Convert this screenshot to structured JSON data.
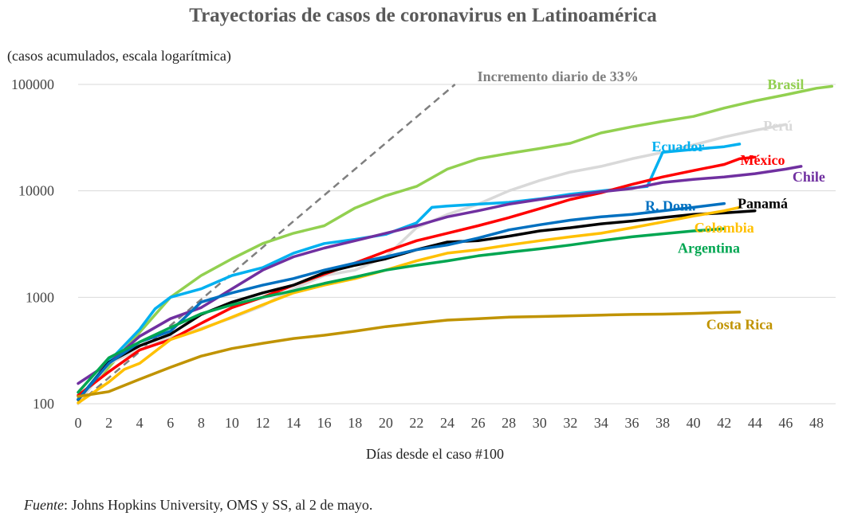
{
  "chart_data": {
    "type": "line",
    "title": "Trayectorias de casos de coronavirus en Latinoamérica",
    "ylabel": "(casos acumulados, escala logarítmica)",
    "xlabel": "Días desde el caso #100",
    "source_label": "Fuente",
    "source_text": ": Johns Hopkins University, OMS y SS, al 2 de mayo.",
    "y_scale": "log",
    "ylim": [
      100,
      100000
    ],
    "xlim": [
      0,
      49
    ],
    "x_ticks": [
      0,
      2,
      4,
      6,
      8,
      10,
      12,
      14,
      16,
      18,
      20,
      22,
      24,
      26,
      28,
      30,
      32,
      34,
      36,
      38,
      40,
      42,
      44,
      46,
      48
    ],
    "y_ticks": [
      100,
      1000,
      10000,
      100000
    ],
    "y_tick_labels": [
      "100",
      "1000",
      "10000",
      "100000"
    ],
    "grid": "horizontal",
    "reference_line": {
      "name": "Incremento diario de 33%",
      "style": "dashed",
      "color": "#7f7f7f",
      "start": [
        0,
        100
      ],
      "end": [
        24.5,
        100000
      ]
    },
    "series": [
      {
        "name": "Brasil",
        "color": "#92d050",
        "label_at": [
          46,
          100000
        ],
        "points": [
          [
            0,
            110
          ],
          [
            2,
            220
          ],
          [
            4,
            470
          ],
          [
            6,
            1000
          ],
          [
            8,
            1600
          ],
          [
            10,
            2300
          ],
          [
            12,
            3200
          ],
          [
            14,
            4000
          ],
          [
            16,
            4700
          ],
          [
            18,
            6900
          ],
          [
            20,
            9000
          ],
          [
            22,
            11000
          ],
          [
            24,
            16000
          ],
          [
            26,
            20000
          ],
          [
            28,
            22500
          ],
          [
            30,
            25000
          ],
          [
            32,
            28000
          ],
          [
            34,
            35000
          ],
          [
            36,
            40000
          ],
          [
            38,
            45000
          ],
          [
            40,
            50000
          ],
          [
            42,
            60000
          ],
          [
            44,
            70000
          ],
          [
            46,
            80000
          ],
          [
            48,
            92000
          ],
          [
            49,
            96000
          ]
        ]
      },
      {
        "name": "Perú",
        "color": "#d9d9d9",
        "label_at": [
          45.5,
          41000
        ],
        "points": [
          [
            0,
            100
          ],
          [
            2,
            240
          ],
          [
            4,
            320
          ],
          [
            6,
            420
          ],
          [
            8,
            510
          ],
          [
            10,
            640
          ],
          [
            12,
            830
          ],
          [
            14,
            1200
          ],
          [
            16,
            1600
          ],
          [
            18,
            1800
          ],
          [
            20,
            2400
          ],
          [
            22,
            4500
          ],
          [
            24,
            6000
          ],
          [
            26,
            7500
          ],
          [
            28,
            10000
          ],
          [
            30,
            12500
          ],
          [
            32,
            15000
          ],
          [
            34,
            17000
          ],
          [
            36,
            20000
          ],
          [
            38,
            23000
          ],
          [
            40,
            27000
          ],
          [
            42,
            32000
          ],
          [
            44,
            37000
          ],
          [
            46,
            42000
          ]
        ]
      },
      {
        "name": "Ecuador",
        "color": "#00b0f0",
        "label_at": [
          39,
          26000
        ],
        "points": [
          [
            0,
            110
          ],
          [
            2,
            250
          ],
          [
            4,
            500
          ],
          [
            5,
            780
          ],
          [
            6,
            1000
          ],
          [
            8,
            1200
          ],
          [
            10,
            1600
          ],
          [
            12,
            1900
          ],
          [
            14,
            2600
          ],
          [
            16,
            3200
          ],
          [
            18,
            3500
          ],
          [
            20,
            3900
          ],
          [
            22,
            5000
          ],
          [
            23,
            7000
          ],
          [
            24,
            7200
          ],
          [
            26,
            7500
          ],
          [
            28,
            7800
          ],
          [
            30,
            8400
          ],
          [
            32,
            9300
          ],
          [
            34,
            10000
          ],
          [
            37,
            11000
          ],
          [
            38,
            23000
          ],
          [
            40,
            24500
          ],
          [
            42,
            26000
          ],
          [
            43,
            27500
          ]
        ]
      },
      {
        "name": "México",
        "color": "#ff0000",
        "label_at": [
          44.5,
          19500
        ],
        "points": [
          [
            0,
            120
          ],
          [
            2,
            200
          ],
          [
            4,
            320
          ],
          [
            6,
            400
          ],
          [
            8,
            570
          ],
          [
            10,
            800
          ],
          [
            12,
            1000
          ],
          [
            14,
            1300
          ],
          [
            16,
            1650
          ],
          [
            18,
            2100
          ],
          [
            20,
            2700
          ],
          [
            22,
            3400
          ],
          [
            24,
            4000
          ],
          [
            26,
            4700
          ],
          [
            28,
            5600
          ],
          [
            30,
            6800
          ],
          [
            32,
            8300
          ],
          [
            34,
            9600
          ],
          [
            36,
            11500
          ],
          [
            38,
            13500
          ],
          [
            40,
            15500
          ],
          [
            42,
            17700
          ],
          [
            43,
            20000
          ],
          [
            44,
            20700
          ]
        ]
      },
      {
        "name": "Chile",
        "color": "#7030a0",
        "label_at": [
          47.5,
          13500
        ],
        "points": [
          [
            0,
            155
          ],
          [
            2,
            240
          ],
          [
            4,
            430
          ],
          [
            6,
            630
          ],
          [
            8,
            800
          ],
          [
            10,
            1200
          ],
          [
            12,
            1800
          ],
          [
            14,
            2400
          ],
          [
            16,
            2900
          ],
          [
            18,
            3400
          ],
          [
            20,
            4000
          ],
          [
            22,
            4700
          ],
          [
            24,
            5700
          ],
          [
            26,
            6500
          ],
          [
            28,
            7500
          ],
          [
            30,
            8300
          ],
          [
            32,
            9000
          ],
          [
            34,
            9800
          ],
          [
            36,
            10500
          ],
          [
            38,
            12000
          ],
          [
            40,
            12800
          ],
          [
            42,
            13500
          ],
          [
            44,
            14500
          ],
          [
            46,
            16000
          ],
          [
            47,
            17000
          ]
        ]
      },
      {
        "name": "Panamá",
        "color": "#000000",
        "label_at": [
          44.5,
          7600
        ],
        "points": [
          [
            0,
            109
          ],
          [
            2,
            245
          ],
          [
            4,
            350
          ],
          [
            6,
            450
          ],
          [
            8,
            690
          ],
          [
            10,
            900
          ],
          [
            12,
            1100
          ],
          [
            14,
            1300
          ],
          [
            16,
            1700
          ],
          [
            18,
            2000
          ],
          [
            20,
            2300
          ],
          [
            22,
            2800
          ],
          [
            24,
            3300
          ],
          [
            26,
            3400
          ],
          [
            28,
            3750
          ],
          [
            30,
            4200
          ],
          [
            32,
            4500
          ],
          [
            34,
            4900
          ],
          [
            36,
            5200
          ],
          [
            38,
            5600
          ],
          [
            40,
            6000
          ],
          [
            42,
            6200
          ],
          [
            44,
            6500
          ]
        ]
      },
      {
        "name": "R. Dom.",
        "color": "#0070c0",
        "label_at": [
          38.5,
          7200
        ],
        "points": [
          [
            0,
            110
          ],
          [
            2,
            240
          ],
          [
            4,
            380
          ],
          [
            6,
            480
          ],
          [
            8,
            900
          ],
          [
            10,
            1100
          ],
          [
            12,
            1300
          ],
          [
            14,
            1500
          ],
          [
            16,
            1800
          ],
          [
            18,
            2100
          ],
          [
            20,
            2400
          ],
          [
            22,
            2800
          ],
          [
            24,
            3100
          ],
          [
            26,
            3600
          ],
          [
            28,
            4300
          ],
          [
            30,
            4800
          ],
          [
            32,
            5300
          ],
          [
            34,
            5700
          ],
          [
            36,
            6000
          ],
          [
            38,
            6500
          ],
          [
            40,
            7000
          ],
          [
            42,
            7600
          ]
        ]
      },
      {
        "name": "Colombia",
        "color": "#ffc000",
        "label_at": [
          42,
          4500
        ],
        "points": [
          [
            0,
            102
          ],
          [
            2,
            160
          ],
          [
            3,
            210
          ],
          [
            4,
            240
          ],
          [
            6,
            400
          ],
          [
            8,
            500
          ],
          [
            10,
            650
          ],
          [
            12,
            850
          ],
          [
            14,
            1100
          ],
          [
            16,
            1300
          ],
          [
            18,
            1500
          ],
          [
            20,
            1800
          ],
          [
            22,
            2200
          ],
          [
            24,
            2600
          ],
          [
            26,
            2800
          ],
          [
            28,
            3100
          ],
          [
            30,
            3400
          ],
          [
            32,
            3700
          ],
          [
            34,
            4000
          ],
          [
            36,
            4500
          ],
          [
            38,
            5100
          ],
          [
            40,
            5800
          ],
          [
            42,
            6500
          ],
          [
            43,
            7000
          ]
        ]
      },
      {
        "name": "Argentina",
        "color": "#00a651",
        "label_at": [
          41,
          2900
        ],
        "points": [
          [
            0,
            128
          ],
          [
            2,
            270
          ],
          [
            4,
            380
          ],
          [
            6,
            520
          ],
          [
            8,
            700
          ],
          [
            10,
            850
          ],
          [
            12,
            1000
          ],
          [
            14,
            1150
          ],
          [
            16,
            1350
          ],
          [
            18,
            1550
          ],
          [
            20,
            1800
          ],
          [
            22,
            2000
          ],
          [
            24,
            2200
          ],
          [
            26,
            2450
          ],
          [
            28,
            2650
          ],
          [
            30,
            2850
          ],
          [
            32,
            3100
          ],
          [
            34,
            3400
          ],
          [
            36,
            3700
          ],
          [
            38,
            3950
          ],
          [
            40,
            4200
          ],
          [
            42,
            4400
          ]
        ]
      },
      {
        "name": "Costa Rica",
        "color": "#c09300",
        "label_at": [
          43,
          555
        ],
        "points": [
          [
            0,
            117
          ],
          [
            2,
            130
          ],
          [
            4,
            170
          ],
          [
            6,
            220
          ],
          [
            8,
            280
          ],
          [
            10,
            330
          ],
          [
            12,
            370
          ],
          [
            14,
            410
          ],
          [
            16,
            440
          ],
          [
            18,
            480
          ],
          [
            20,
            530
          ],
          [
            22,
            570
          ],
          [
            24,
            610
          ],
          [
            26,
            630
          ],
          [
            28,
            650
          ],
          [
            30,
            660
          ],
          [
            32,
            670
          ],
          [
            34,
            680
          ],
          [
            36,
            690
          ],
          [
            38,
            695
          ],
          [
            40,
            705
          ],
          [
            42,
            720
          ],
          [
            43,
            726
          ]
        ]
      }
    ]
  }
}
